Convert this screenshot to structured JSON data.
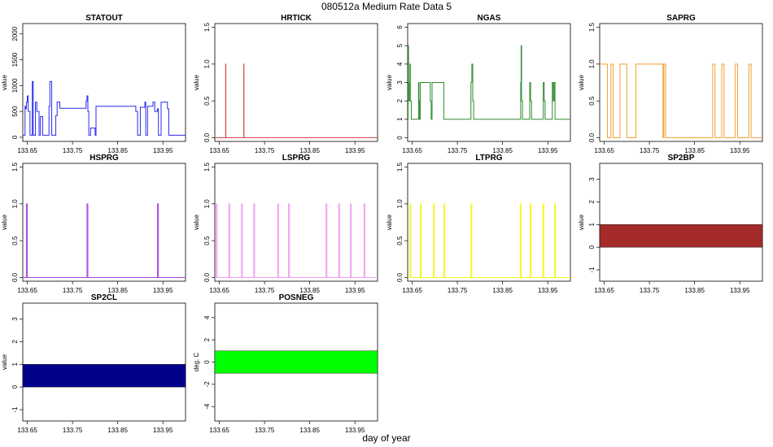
{
  "figure": {
    "title": "080512a   Medium Rate Data 5",
    "xlabel": "day of year"
  },
  "chart_data": [
    {
      "name": "STATOUT",
      "type": "line",
      "color": "#2b2bf0",
      "ylabel": "value",
      "xlim": [
        133.64,
        134.0
      ],
      "ylim": [
        -80,
        2200
      ],
      "xticks": [
        "133.65",
        "133.75",
        "133.85",
        "133.95"
      ],
      "yticks": [
        "0",
        "500",
        "1000",
        "1500",
        "2000"
      ],
      "series": [
        {
          "x": [
            133.64,
            133.645,
            133.645,
            133.646,
            133.646,
            133.648,
            133.648,
            133.65,
            133.65,
            133.652,
            133.652,
            133.656,
            133.656,
            133.661,
            133.661,
            133.663,
            133.663,
            133.668,
            133.668,
            133.671,
            133.671,
            133.676,
            133.676,
            133.679,
            133.679,
            133.684,
            133.684,
            133.698,
            133.698,
            133.7,
            133.7,
            133.704,
            133.704,
            133.713,
            133.713,
            133.716,
            133.716,
            133.722,
            133.722,
            133.78,
            133.78,
            133.782,
            133.782,
            133.784,
            133.784,
            133.786,
            133.786,
            133.79,
            133.79,
            133.8,
            133.8,
            133.802,
            133.802,
            133.89,
            133.89,
            133.894,
            133.894,
            133.9,
            133.9,
            133.91,
            133.91,
            133.912,
            133.912,
            133.916,
            133.916,
            133.928,
            133.928,
            133.932,
            133.932,
            133.938,
            133.938,
            133.94,
            133.94,
            133.946,
            133.946,
            133.96,
            133.96,
            133.963,
            133.963,
            133.967,
            133.967,
            134.0
          ],
          "y": [
            40,
            40,
            600,
            600,
            550,
            550,
            680,
            680,
            800,
            800,
            500,
            500,
            40,
            40,
            1080,
            1080,
            40,
            40,
            680,
            680,
            500,
            500,
            40,
            40,
            400,
            400,
            40,
            40,
            600,
            600,
            1080,
            1080,
            40,
            40,
            420,
            420,
            680,
            680,
            560,
            560,
            700,
            700,
            800,
            800,
            500,
            500,
            40,
            40,
            180,
            180,
            40,
            40,
            600,
            600,
            500,
            500,
            40,
            40,
            580,
            580,
            680,
            680,
            40,
            40,
            600,
            600,
            680,
            680,
            500,
            500,
            550,
            550,
            40,
            40,
            680,
            680,
            550,
            550,
            40,
            40,
            40,
            40
          ]
        }
      ]
    },
    {
      "name": "HRTICK",
      "type": "line",
      "color": "#d9434a",
      "ylabel": "value",
      "xlim": [
        133.64,
        134.0
      ],
      "ylim": [
        -0.05,
        1.55
      ],
      "xticks": [
        "133.65",
        "133.75",
        "133.85",
        "133.95"
      ],
      "yticks": [
        "0.0",
        "0.5",
        "1.0",
        "1.5"
      ],
      "series": [
        {
          "x": [
            133.64,
            133.664,
            133.664,
            133.6645,
            133.6645,
            133.704,
            133.704,
            133.7045,
            133.7045,
            134.0
          ],
          "y": [
            0,
            0,
            1,
            1,
            0,
            0,
            1,
            1,
            0,
            0
          ]
        }
      ]
    },
    {
      "name": "NGAS",
      "type": "line",
      "color": "#2e8b2e",
      "ylabel": "value",
      "xlim": [
        133.64,
        134.0
      ],
      "ylim": [
        -0.2,
        6.2
      ],
      "xticks": [
        "133.65",
        "133.75",
        "133.85",
        "133.95"
      ],
      "yticks": [
        "0",
        "1",
        "2",
        "3",
        "4",
        "5",
        "6"
      ],
      "series": [
        {
          "x": [
            133.64,
            133.641,
            133.641,
            133.642,
            133.642,
            133.644,
            133.644,
            133.645,
            133.645,
            133.646,
            133.646,
            133.648,
            133.648,
            133.664,
            133.664,
            133.665,
            133.665,
            133.666,
            133.666,
            133.668,
            133.668,
            133.69,
            133.69,
            133.692,
            133.692,
            133.694,
            133.694,
            133.72,
            133.72,
            133.722,
            133.722,
            133.78,
            133.78,
            133.782,
            133.782,
            133.784,
            133.784,
            133.786,
            133.786,
            133.89,
            133.89,
            133.891,
            133.891,
            133.892,
            133.892,
            133.894,
            133.894,
            133.91,
            133.91,
            133.912,
            133.912,
            133.914,
            133.914,
            133.94,
            133.94,
            133.942,
            133.942,
            133.944,
            133.944,
            133.96,
            133.96,
            133.962,
            133.962,
            133.964,
            133.964,
            133.966,
            133.966,
            134.0
          ],
          "y": [
            1,
            1,
            5,
            5,
            2,
            2,
            3,
            3,
            4,
            4,
            2,
            2,
            1,
            1,
            3,
            3,
            2,
            2,
            1,
            1,
            3,
            3,
            2,
            2,
            1,
            1,
            3,
            3,
            1,
            1,
            1,
            1,
            3,
            3,
            4,
            4,
            2,
            2,
            1,
            1,
            3,
            3,
            5,
            5,
            2,
            2,
            1,
            1,
            3,
            3,
            2,
            2,
            1,
            1,
            3,
            3,
            2,
            2,
            1,
            1,
            3,
            3,
            2,
            2,
            3,
            3,
            1,
            1
          ]
        }
      ]
    },
    {
      "name": "SAPRG",
      "type": "line",
      "color": "#f0a030",
      "ylabel": "value",
      "xlim": [
        133.64,
        134.0
      ],
      "ylim": [
        -0.05,
        1.55
      ],
      "xticks": [
        "133.65",
        "133.75",
        "133.85",
        "133.95"
      ],
      "yticks": [
        "0.0",
        "0.5",
        "1.0",
        "1.5"
      ],
      "series": [
        {
          "x": [
            133.64,
            133.657,
            133.657,
            133.665,
            133.665,
            133.67,
            133.67,
            133.685,
            133.685,
            133.7,
            133.7,
            133.72,
            133.72,
            133.78,
            133.78,
            133.782,
            133.782,
            133.786,
            133.786,
            133.89,
            133.89,
            133.895,
            133.895,
            133.91,
            133.91,
            133.915,
            133.915,
            133.94,
            133.94,
            133.945,
            133.945,
            133.97,
            133.97,
            133.975,
            133.975,
            134.0
          ],
          "y": [
            1,
            1,
            0,
            0,
            1,
            1,
            0,
            0,
            1,
            1,
            0,
            0,
            1,
            1,
            0,
            0,
            1,
            1,
            0,
            0,
            1,
            1,
            0,
            0,
            1,
            1,
            0,
            0,
            1,
            1,
            0,
            0,
            1,
            1,
            0,
            0
          ]
        }
      ]
    },
    {
      "name": "HSPRG",
      "type": "line",
      "color": "#a844e0",
      "ylabel": "value",
      "xlim": [
        133.64,
        134.0
      ],
      "ylim": [
        -0.05,
        1.55
      ],
      "xticks": [
        "133.65",
        "133.75",
        "133.85",
        "133.95"
      ],
      "yticks": [
        "0.0",
        "0.5",
        "1.0",
        "1.5"
      ],
      "series": [
        {
          "x": [
            133.64,
            133.648,
            133.648,
            133.65,
            133.65,
            133.782,
            133.782,
            133.784,
            133.784,
            133.938,
            133.938,
            133.94,
            133.94,
            134.0
          ],
          "y": [
            0,
            0,
            1,
            1,
            0,
            0,
            1,
            1,
            0,
            0,
            1,
            1,
            0,
            0
          ]
        }
      ]
    },
    {
      "name": "LSPRG",
      "type": "line",
      "color": "#f0a0f0",
      "ylabel": "value",
      "xlim": [
        133.64,
        134.0
      ],
      "ylim": [
        -0.05,
        1.55
      ],
      "xticks": [
        "133.65",
        "133.75",
        "133.85",
        "133.95"
      ],
      "yticks": [
        "0.0",
        "0.5",
        "1.0",
        "1.5"
      ],
      "series": [
        {
          "x": [
            133.64,
            133.643,
            133.643,
            133.645,
            133.645,
            133.671,
            133.671,
            133.673,
            133.673,
            133.699,
            133.699,
            133.701,
            133.701,
            133.726,
            133.726,
            133.728,
            133.728,
            133.779,
            133.779,
            133.781,
            133.781,
            133.803,
            133.803,
            133.805,
            133.805,
            133.886,
            133.886,
            133.888,
            133.888,
            133.914,
            133.914,
            133.916,
            133.916,
            133.94,
            133.94,
            133.942,
            133.942,
            133.97,
            133.97,
            133.972,
            133.972,
            134.0
          ],
          "y": [
            0,
            0,
            1,
            1,
            0,
            0,
            1,
            1,
            0,
            0,
            1,
            1,
            0,
            0,
            1,
            1,
            0,
            0,
            1,
            1,
            0,
            0,
            1,
            1,
            0,
            0,
            1,
            1,
            0,
            0,
            1,
            1,
            0,
            0,
            1,
            1,
            0,
            0,
            1,
            1,
            0,
            0
          ]
        }
      ]
    },
    {
      "name": "LTPRG",
      "type": "line",
      "color": "#f5f51e",
      "ylabel": "value",
      "xlim": [
        133.64,
        134.0
      ],
      "ylim": [
        -0.05,
        1.55
      ],
      "xticks": [
        "133.65",
        "133.75",
        "133.85",
        "133.95"
      ],
      "yticks": [
        "0.0",
        "0.5",
        "1.0",
        "1.5"
      ],
      "series": [
        {
          "x": [
            133.64,
            133.645,
            133.645,
            133.647,
            133.647,
            133.668,
            133.668,
            133.67,
            133.67,
            133.697,
            133.697,
            133.699,
            133.699,
            133.72,
            133.72,
            133.722,
            133.722,
            133.78,
            133.78,
            133.782,
            133.782,
            133.889,
            133.889,
            133.891,
            133.891,
            133.911,
            133.911,
            133.913,
            133.913,
            133.939,
            133.939,
            133.941,
            133.941,
            133.965,
            133.965,
            133.967,
            133.967,
            134.0
          ],
          "y": [
            0,
            0,
            1,
            1,
            0,
            0,
            1,
            1,
            0,
            0,
            1,
            1,
            0,
            0,
            1,
            1,
            0,
            0,
            1,
            1,
            0,
            0,
            1,
            1,
            0,
            0,
            1,
            1,
            0,
            0,
            1,
            1,
            0,
            0,
            1,
            1,
            0,
            0
          ]
        }
      ]
    },
    {
      "name": "SP2BP",
      "type": "area",
      "color": "#a52a2a",
      "ylabel": "value",
      "xlim": [
        133.64,
        134.0
      ],
      "ylim": [
        -1.5,
        3.7
      ],
      "xticks": [
        "133.65",
        "133.75",
        "133.85",
        "133.95"
      ],
      "yticks": [
        "-1",
        "0",
        "1",
        "2",
        "3"
      ],
      "band": {
        "x": [
          133.64,
          134.0
        ],
        "y": [
          0,
          1
        ]
      }
    },
    {
      "name": "SP2CL",
      "type": "area",
      "color": "#00008b",
      "ylabel": "value",
      "xlim": [
        133.64,
        134.0
      ],
      "ylim": [
        -1.5,
        3.7
      ],
      "xticks": [
        "133.65",
        "133.75",
        "133.85",
        "133.95"
      ],
      "yticks": [
        "-1",
        "0",
        "1",
        "2",
        "3"
      ],
      "band": {
        "x": [
          133.64,
          134.0
        ],
        "y": [
          0,
          1
        ]
      }
    },
    {
      "name": "POSNEG",
      "type": "area",
      "color": "#00ff00",
      "ylabel": "deg. C",
      "xlim": [
        133.64,
        134.0
      ],
      "ylim": [
        -5.3,
        5.3
      ],
      "xticks": [
        "133.65",
        "133.75",
        "133.85",
        "133.95"
      ],
      "yticks": [
        "-4",
        "-2",
        "0",
        "2",
        "4"
      ],
      "band": {
        "x": [
          133.64,
          134.0
        ],
        "y": [
          -1,
          1
        ]
      }
    }
  ]
}
